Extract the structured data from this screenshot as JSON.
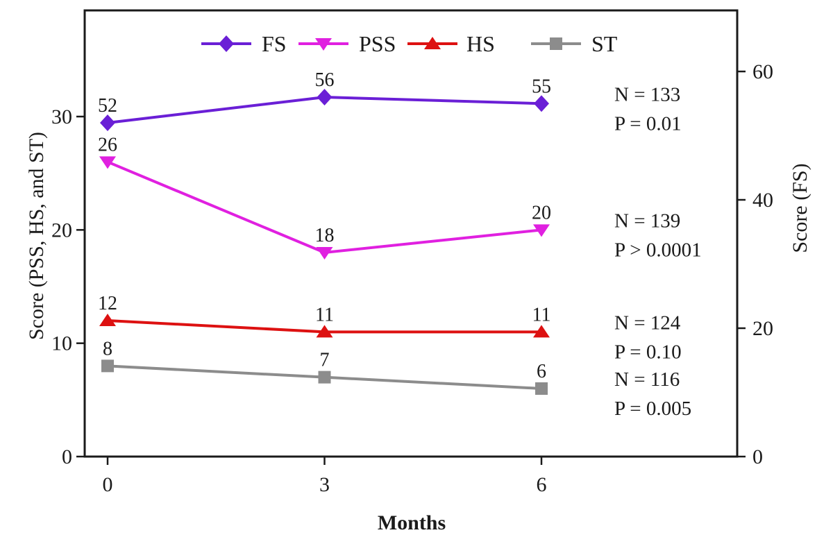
{
  "figure": {
    "background": "#ffffff",
    "axis_color": "#1a1a1a",
    "text_color": "#1a1a1a"
  },
  "chart_data": {
    "type": "line",
    "title": "",
    "xlabel": "Months",
    "ylabel_left": "Score (PSS, HS, and ST)",
    "ylabel_right": "Score (FS)",
    "x": [
      0,
      3,
      6
    ],
    "x_tick_labels": [
      "0",
      "3",
      "6"
    ],
    "left_axis": {
      "tick_values": [
        0,
        10,
        20,
        30
      ],
      "tick_labels": [
        "0",
        "10",
        "20",
        "30"
      ],
      "range": [
        0,
        39.4
      ]
    },
    "right_axis": {
      "tick_values": [
        0,
        20,
        40,
        60
      ],
      "tick_labels": [
        "0",
        "20",
        "40",
        "60"
      ],
      "range": [
        0,
        69.5
      ]
    },
    "grid": false,
    "legend_position": "top-center",
    "legend": [
      "FS",
      "PSS",
      "HS",
      "ST"
    ],
    "series": [
      {
        "name": "FS",
        "axis": "right",
        "marker": "diamond",
        "color": "#6A1FD6",
        "values": [
          52,
          56,
          55
        ],
        "point_labels": [
          "52",
          "56",
          "55"
        ],
        "n_label": "N = 133",
        "p_label": "P = 0.01"
      },
      {
        "name": "PSS",
        "axis": "left",
        "marker": "triangle-down",
        "color": "#E020E0",
        "values": [
          26,
          18,
          20
        ],
        "point_labels": [
          "26",
          "18",
          "20"
        ],
        "n_label": "N = 139",
        "p_label": "P > 0.0001"
      },
      {
        "name": "HS",
        "axis": "left",
        "marker": "triangle-up",
        "color": "#DD1111",
        "values": [
          12,
          11,
          11
        ],
        "point_labels": [
          "12",
          "11",
          "11"
        ],
        "n_label": "N = 124",
        "p_label": "P = 0.10"
      },
      {
        "name": "ST",
        "axis": "left",
        "marker": "square",
        "color": "#8C8C8C",
        "values": [
          8,
          7,
          6
        ],
        "point_labels": [
          "8",
          "7",
          "6"
        ],
        "n_label": "N = 116",
        "p_label": "P = 0.005"
      }
    ]
  }
}
